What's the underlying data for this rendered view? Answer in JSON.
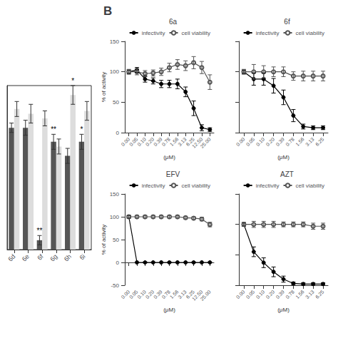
{
  "title": "B",
  "chart_data": [
    {
      "type": "bar",
      "categories": [
        "6d",
        "6e",
        "6f",
        "6g",
        "6h",
        "6i"
      ],
      "series": [
        {
          "color": "#555555",
          "values": [
            130,
            130,
            10,
            115,
            100,
            115
          ],
          "errors": [
            5,
            8,
            5,
            8,
            8,
            8
          ],
          "annotations": [
            null,
            null,
            "**",
            "**",
            null,
            "*"
          ]
        },
        {
          "color": "#dddddd",
          "values": [
            150,
            145,
            140,
            110,
            165,
            148
          ],
          "errors": [
            8,
            10,
            8,
            8,
            10,
            10
          ],
          "annotations": [
            null,
            null,
            null,
            null,
            "*",
            null
          ]
        }
      ],
      "ylim": [
        0,
        175
      ],
      "tick_labels": "x",
      "grid": false
    },
    {
      "type": "line",
      "title": "6a",
      "categories": [
        "0.00",
        "0.05",
        "0.10",
        "0.20",
        "0.39",
        "0.78",
        "1.56",
        "3.13",
        "6.25",
        "12.50",
        "25.00"
      ],
      "xlabel": "(μM)",
      "ylabel": "% of activity",
      "ylim": [
        0,
        150
      ],
      "yticks": [
        0,
        50,
        100,
        150
      ],
      "legend": "upper right",
      "grid": false,
      "series": [
        {
          "name": "infectivity",
          "color": "#000000",
          "marker": "circle",
          "values": [
            100,
            103,
            88,
            85,
            80,
            80,
            80,
            67,
            40,
            8,
            5
          ],
          "errors": [
            3,
            4,
            5,
            5,
            6,
            6,
            8,
            8,
            12,
            5,
            3
          ]
        },
        {
          "name": "cell viability",
          "color": "#555555",
          "marker": "emptyCircle",
          "values": [
            100,
            100,
            97,
            98,
            100,
            107,
            112,
            110,
            115,
            107,
            83
          ],
          "errors": [
            4,
            5,
            5,
            5,
            6,
            7,
            8,
            8,
            10,
            10,
            12
          ]
        }
      ]
    },
    {
      "type": "line",
      "title": "6f",
      "categories": [
        "0.00",
        "0.05",
        "0.10",
        "0.20",
        "0.39",
        "0.78",
        "1.56",
        "3.13",
        "6.25"
      ],
      "xlabel": "(μM)",
      "ylim": [
        0,
        150
      ],
      "yticks": [
        0,
        50,
        100,
        150
      ],
      "legend": "upper right",
      "grid": false,
      "tick_labels": "x",
      "series": [
        {
          "name": "infectivity",
          "color": "#000000",
          "marker": "circle",
          "values": [
            100,
            88,
            88,
            77,
            58,
            28,
            10,
            8,
            8
          ],
          "errors": [
            3,
            10,
            10,
            12,
            12,
            10,
            4,
            3,
            3
          ]
        },
        {
          "name": "cell viability",
          "color": "#555555",
          "marker": "emptyCircle",
          "values": [
            100,
            100,
            100,
            100,
            100,
            93,
            93,
            93,
            93
          ],
          "errors": [
            4,
            12,
            10,
            8,
            8,
            7,
            8,
            8,
            8
          ]
        }
      ]
    },
    {
      "type": "line",
      "title": "EFV",
      "categories": [
        "0.00",
        "0.05",
        "0.10",
        "0.20",
        "0.39",
        "0.78",
        "1.56",
        "3.13",
        "6.25",
        "12.50",
        "25.00"
      ],
      "xlabel": "(μM)",
      "ylabel": "% of activity",
      "ylim": [
        -50,
        150
      ],
      "yticks": [
        -50,
        0,
        50,
        100,
        150
      ],
      "legend": "upper right",
      "grid": false,
      "series": [
        {
          "name": "infectivity",
          "color": "#000000",
          "marker": "circle",
          "values": [
            100,
            0,
            0,
            0,
            0,
            0,
            0,
            0,
            0,
            0,
            0
          ],
          "errors": [
            3,
            1,
            1,
            1,
            1,
            1,
            1,
            1,
            1,
            1,
            1
          ]
        },
        {
          "name": "cell viability",
          "color": "#555555",
          "marker": "emptyCircle",
          "values": [
            100,
            100,
            100,
            100,
            100,
            100,
            100,
            98,
            97,
            95,
            83
          ],
          "errors": [
            3,
            3,
            3,
            3,
            3,
            3,
            3,
            3,
            3,
            4,
            5
          ]
        }
      ]
    },
    {
      "type": "line",
      "title": "AZT",
      "categories": [
        "0.00",
        "0.05",
        "0.10",
        "0.20",
        "0.39",
        "0.78",
        "1.56",
        "3.13",
        "6.25"
      ],
      "xlabel": "(μM)",
      "ylim": [
        0,
        150
      ],
      "yticks": [
        0,
        50,
        100,
        150
      ],
      "legend": "upper right",
      "grid": false,
      "tick_labels": "x",
      "series": [
        {
          "name": "infectivity",
          "color": "#000000",
          "marker": "circle",
          "values": [
            100,
            55,
            37,
            22,
            10,
            3,
            2,
            2,
            2
          ],
          "errors": [
            3,
            8,
            8,
            8,
            5,
            2,
            2,
            2,
            2
          ]
        },
        {
          "name": "cell viability",
          "color": "#555555",
          "marker": "emptyCircle",
          "values": [
            100,
            100,
            100,
            100,
            100,
            100,
            100,
            97,
            97
          ],
          "errors": [
            3,
            5,
            5,
            5,
            4,
            4,
            4,
            5,
            5
          ]
        }
      ]
    }
  ]
}
